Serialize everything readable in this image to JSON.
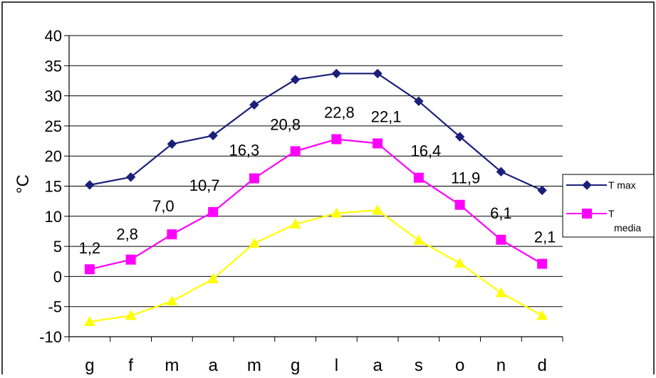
{
  "chart_data": {
    "type": "line",
    "title": "",
    "xlabel": "",
    "ylabel": "°C",
    "categories": [
      "g",
      "f",
      "m",
      "a",
      "m",
      "g",
      "l",
      "a",
      "s",
      "o",
      "n",
      "d"
    ],
    "ylim": [
      -10,
      40
    ],
    "yticks": [
      40,
      35,
      30,
      25,
      20,
      15,
      10,
      5,
      0,
      -5,
      -10
    ],
    "ytick_labels": [
      "40",
      "35",
      "30",
      "25",
      "20",
      "15",
      "10",
      "5",
      "0",
      "-5",
      "-10"
    ],
    "grid": "horizontal",
    "legend_position": "right",
    "series": [
      {
        "name": "T max",
        "color": "#1a1f7a",
        "marker": "diamond",
        "values": [
          15.2,
          16.5,
          22.0,
          23.4,
          28.5,
          32.7,
          33.7,
          33.7,
          29.1,
          23.2,
          17.4,
          14.3
        ]
      },
      {
        "name": "T media",
        "color": "#ff00ff",
        "marker": "square",
        "values": [
          1.2,
          2.8,
          7.0,
          10.7,
          16.3,
          20.8,
          22.8,
          22.1,
          16.4,
          11.9,
          6.1,
          2.1
        ],
        "data_labels": [
          "1,2",
          "2,8",
          "7,0",
          "10,7",
          "16,3",
          "20,8",
          "22,8",
          "22,1",
          "16,4",
          "11,9",
          "6,1",
          "2,1"
        ]
      },
      {
        "color": "#ffff00",
        "marker": "triangle",
        "values": [
          -7.5,
          -6.5,
          -4.1,
          -0.4,
          5.5,
          8.7,
          10.5,
          11.0,
          6.0,
          2.2,
          -2.7,
          -6.5
        ]
      }
    ],
    "legend": {
      "entries": [
        {
          "label": "T max",
          "color": "#1a1f7a",
          "marker": "diamond"
        },
        {
          "label_line1": "T",
          "label_line2": "media",
          "color": "#ff00ff",
          "marker": "square"
        }
      ]
    }
  }
}
